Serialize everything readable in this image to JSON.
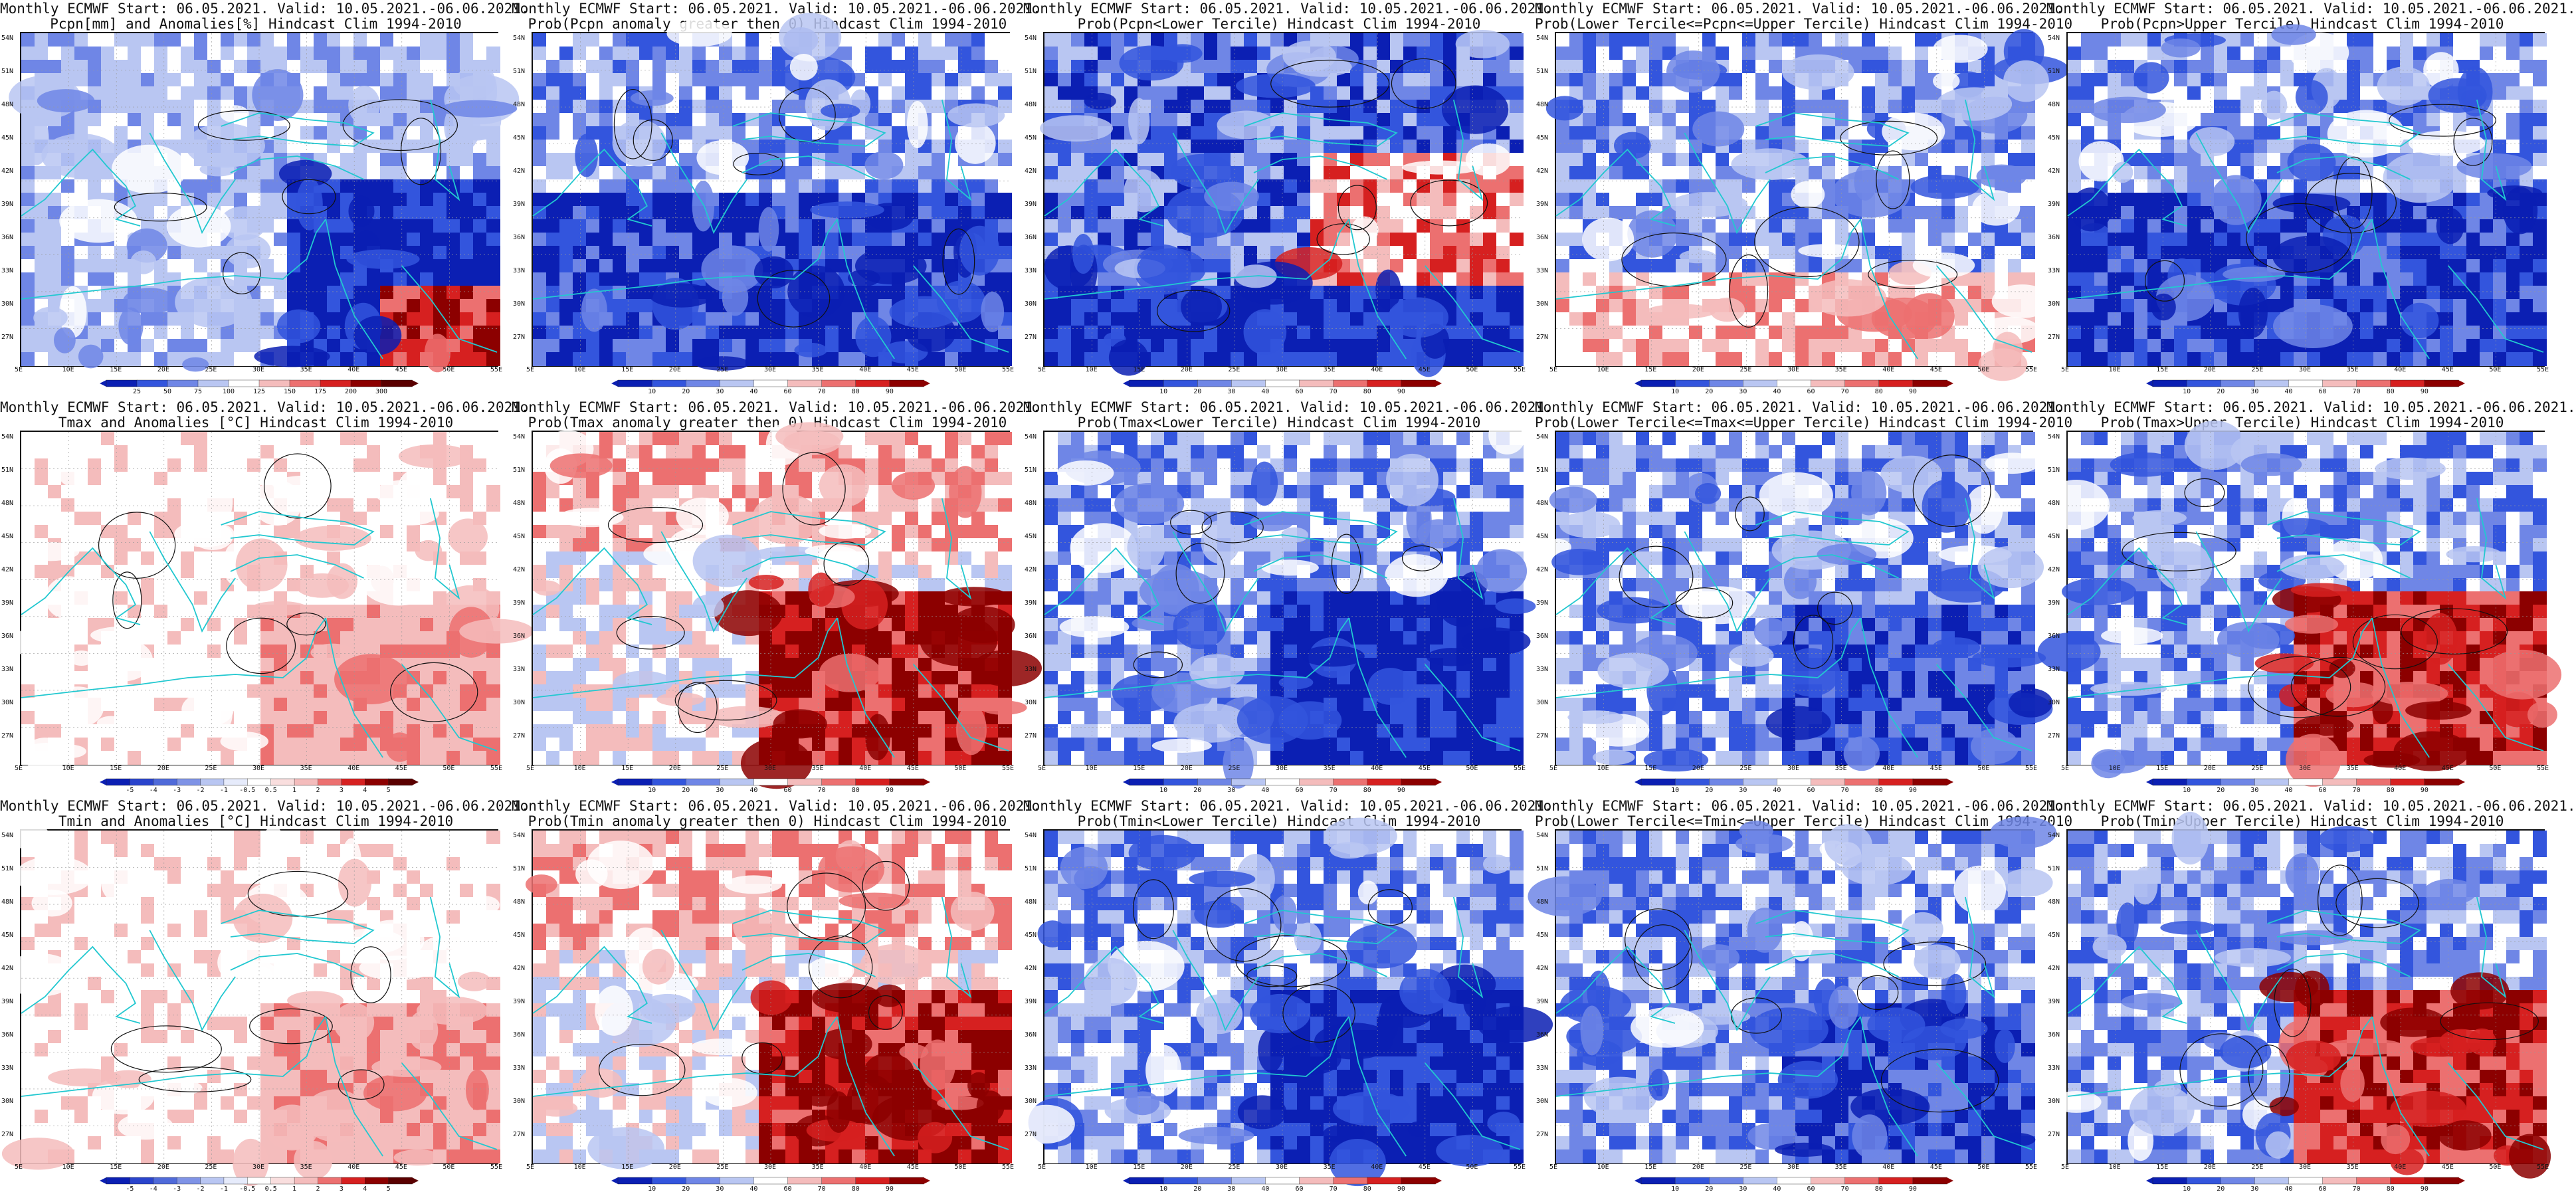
{
  "lat_labels": [
    "54N",
    "51N",
    "48N",
    "45N",
    "42N",
    "39N",
    "36N",
    "33N",
    "30N",
    "27N"
  ],
  "lon_labels": [
    "5E",
    "10E",
    "15E",
    "20E",
    "25E",
    "30E",
    "35E",
    "40E",
    "45E",
    "50E",
    "55E"
  ],
  "colorbars": {
    "anom_pcpn": {
      "labels": [
        "25",
        "50",
        "75",
        "100",
        "125",
        "150",
        "175",
        "200",
        "300"
      ]
    },
    "prob": {
      "labels": [
        "10",
        "20",
        "30",
        "40",
        "60",
        "70",
        "80",
        "90"
      ]
    },
    "anom_temp": {
      "labels": [
        "-5",
        "-4",
        "-3",
        "-2",
        "-1",
        "-0.5",
        "0.5",
        "1",
        "2",
        "3",
        "4",
        "5"
      ]
    }
  },
  "colors": {
    "dark_blue": "#0b1fb3",
    "blue": "#3355dd",
    "mid_blue": "#6f86e6",
    "light_blue": "#b9c6f2",
    "white": "#ffffff",
    "light_red": "#f4bcbc",
    "mid_red": "#ec7070",
    "red": "#d62020",
    "dark_red": "#8c0000",
    "coast": "#22c8d0"
  },
  "panels": [
    {
      "title1": "Monthly ECMWF Start: 06.05.2021. Valid: 10.05.2021.-06.06.2021.",
      "title2": "Pcpn[mm] and Anomalies[%] Hindcast Clim 1994-2010",
      "cbar": "anom_pcpn",
      "scheme": "pcpn_anom"
    },
    {
      "title1": "Monthly ECMWF Start: 06.05.2021. Valid: 10.05.2021.-06.06.2021.",
      "title2": "Prob(Pcpn anomaly greater then 0) Hindcast Clim 1994-2010",
      "cbar": "prob",
      "scheme": "blue_heavy"
    },
    {
      "title1": "Monthly ECMWF Start: 06.05.2021. Valid: 10.05.2021.-06.06.2021.",
      "title2": "Prob(Pcpn<Lower Tercile) Hindcast Clim 1994-2010",
      "cbar": "prob",
      "scheme": "pcpn_lower"
    },
    {
      "title1": "Monthly ECMWF Start: 06.05.2021. Valid: 10.05.2021.-06.06.2021.",
      "title2": "Prob(Lower Tercile<=Pcpn<=Upper Tercile) Hindcast Clim 1994-2010",
      "cbar": "prob",
      "scheme": "pcpn_middle"
    },
    {
      "title1": "Monthly ECMWF Start: 06.05.2021. Valid: 10.05.2021.-06.06.2021.",
      "title2": "Prob(Pcpn>Upper Tercile) Hindcast Clim 1994-2010",
      "cbar": "prob",
      "scheme": "blue_heavy"
    },
    {
      "title1": "Monthly ECMWF Start: 06.05.2021. Valid: 10.05.2021.-06.06.2021.",
      "title2": "Tmax and Anomalies [°C] Hindcast Clim 1994-2010",
      "cbar": "anom_temp",
      "scheme": "temp_anom_light"
    },
    {
      "title1": "Monthly ECMWF Start: 06.05.2021. Valid: 10.05.2021.-06.06.2021.",
      "title2": "Prob(Tmax anomaly greater then 0) Hindcast Clim 1994-2010",
      "cbar": "prob",
      "scheme": "warm_east"
    },
    {
      "title1": "Monthly ECMWF Start: 06.05.2021. Valid: 10.05.2021.-06.06.2021.",
      "title2": "Prob(Tmax<Lower Tercile) Hindcast Clim 1994-2010",
      "cbar": "prob",
      "scheme": "blue_east"
    },
    {
      "title1": "Monthly ECMWF Start: 06.05.2021. Valid: 10.05.2021.-06.06.2021.",
      "title2": "Prob(Lower Tercile<=Tmax<=Upper Tercile) Hindcast Clim 1994-2010",
      "cbar": "prob",
      "scheme": "blue_mixed"
    },
    {
      "title1": "Monthly ECMWF Start: 06.05.2021. Valid: 10.05.2021.-06.06.2021.",
      "title2": "Prob(Tmax>Upper Tercile) Hindcast Clim 1994-2010",
      "cbar": "prob",
      "scheme": "warm_mixed"
    },
    {
      "title1": "Monthly ECMWF Start: 06.05.2021. Valid: 10.05.2021.-06.06.2021.",
      "title2": "Tmin and Anomalies [°C] Hindcast Clim 1994-2010",
      "cbar": "anom_temp",
      "scheme": "temp_anom_light"
    },
    {
      "title1": "Monthly ECMWF Start: 06.05.2021. Valid: 10.05.2021.-06.06.2021.",
      "title2": "Prob(Tmin anomaly greater then 0) Hindcast Clim 1994-2010",
      "cbar": "prob",
      "scheme": "warm_east"
    },
    {
      "title1": "Monthly ECMWF Start: 06.05.2021. Valid: 10.05.2021.-06.06.2021.",
      "title2": "Prob(Tmin<Lower Tercile) Hindcast Clim 1994-2010",
      "cbar": "prob",
      "scheme": "blue_east"
    },
    {
      "title1": "Monthly ECMWF Start: 06.05.2021. Valid: 10.05.2021.-06.06.2021.",
      "title2": "Prob(Lower Tercile<=Tmin<=Upper Tercile) Hindcast Clim 1994-2010",
      "cbar": "prob",
      "scheme": "blue_mixed"
    },
    {
      "title1": "Monthly ECMWF Start: 06.05.2021. Valid: 10.05.2021.-06.06.2021.",
      "title2": "Prob(Tmin>Upper Tercile) Hindcast Clim 1994-2010",
      "cbar": "prob",
      "scheme": "warm_mixed"
    }
  ]
}
